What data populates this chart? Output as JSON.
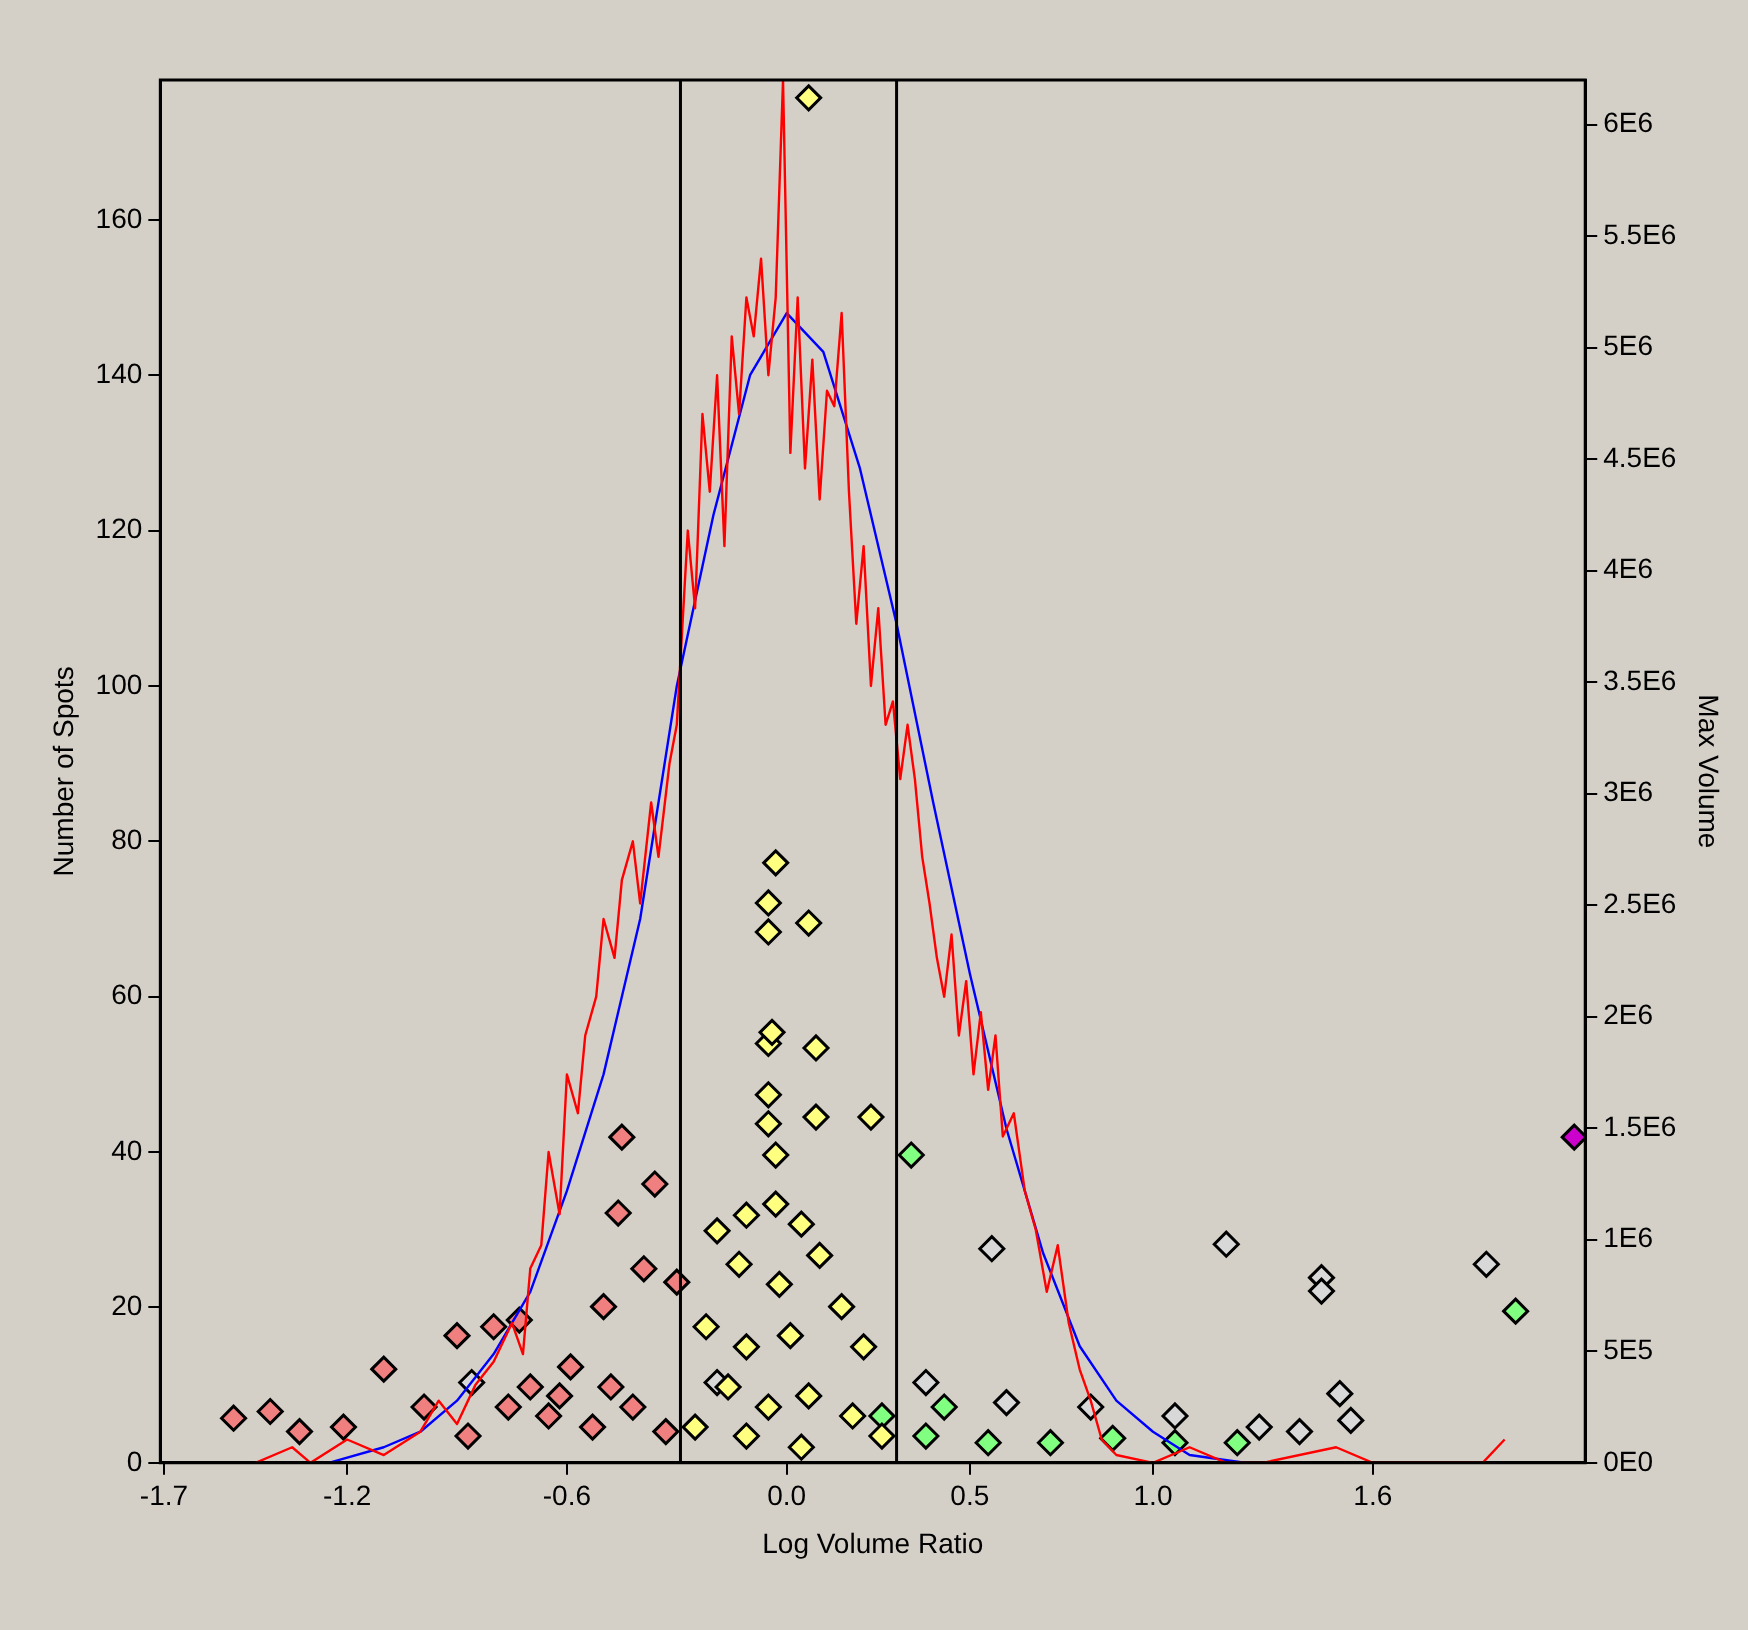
{
  "chart_data": {
    "type": "scatter",
    "xlabel": "Log Volume Ratio",
    "ylabel": "Number of Spots",
    "y2label": "Max Volume",
    "xlim": [
      -1.71,
      2.18
    ],
    "xticks": [
      {
        "value": -1.7,
        "label": "-1.7"
      },
      {
        "value": -1.2,
        "label": "-1.2"
      },
      {
        "value": -0.6,
        "label": "-0.6"
      },
      {
        "value": 0,
        "label": "0.0"
      },
      {
        "value": 0.5,
        "label": "0.5"
      },
      {
        "value": 1.0,
        "label": "1.0"
      },
      {
        "value": 1.6,
        "label": "1.6"
      }
    ],
    "ylim": [
      0,
      178
    ],
    "yticks": [
      0,
      20,
      40,
      60,
      80,
      100,
      120,
      140,
      160
    ],
    "y2lim": [
      0,
      6200000
    ],
    "y2ticks": [
      {
        "value": 0,
        "label": "0E0"
      },
      {
        "value": 500000,
        "label": "5E5"
      },
      {
        "value": 1000000,
        "label": "1E6"
      },
      {
        "value": 1500000,
        "label": "1.5E6"
      },
      {
        "value": 2000000,
        "label": "2E6"
      },
      {
        "value": 2500000,
        "label": "2.5E6"
      },
      {
        "value": 3000000,
        "label": "3E6"
      },
      {
        "value": 3500000,
        "label": "3.5E6"
      },
      {
        "value": 4000000,
        "label": "4E6"
      },
      {
        "value": 4500000,
        "label": "4.5E6"
      },
      {
        "value": 5000000,
        "label": "5E6"
      },
      {
        "value": 5500000,
        "label": "5.5E6"
      },
      {
        "value": 6000000,
        "label": "6E6"
      }
    ],
    "grid": false,
    "legend": false,
    "ref_lines": [
      {
        "axis": "x",
        "value": -0.29,
        "color": "#000000"
      },
      {
        "axis": "x",
        "value": 0.3,
        "color": "#000000"
      }
    ],
    "series": [
      {
        "type": "line",
        "color": "#ff0000",
        "marker": "none",
        "line_style": "solid",
        "x": [
          -1.45,
          -1.35,
          -1.3,
          -1.2,
          -1.1,
          -1.0,
          -0.95,
          -0.9,
          -0.85,
          -0.8,
          -0.75,
          -0.72,
          -0.7,
          -0.67,
          -0.65,
          -0.62,
          -0.6,
          -0.57,
          -0.55,
          -0.52,
          -0.5,
          -0.47,
          -0.45,
          -0.42,
          -0.4,
          -0.37,
          -0.35,
          -0.32,
          -0.3,
          -0.27,
          -0.25,
          -0.23,
          -0.21,
          -0.19,
          -0.17,
          -0.15,
          -0.13,
          -0.11,
          -0.09,
          -0.07,
          -0.05,
          -0.03,
          -0.01,
          0.01,
          0.03,
          0.05,
          0.07,
          0.09,
          0.11,
          0.13,
          0.15,
          0.17,
          0.19,
          0.21,
          0.23,
          0.25,
          0.27,
          0.29,
          0.31,
          0.33,
          0.35,
          0.37,
          0.39,
          0.41,
          0.43,
          0.45,
          0.47,
          0.49,
          0.51,
          0.53,
          0.55,
          0.57,
          0.59,
          0.62,
          0.65,
          0.68,
          0.71,
          0.74,
          0.77,
          0.8,
          0.83,
          0.86,
          0.9,
          1.0,
          1.1,
          1.2,
          1.3,
          1.5,
          1.6,
          1.9,
          1.96
        ],
        "values": [
          0,
          2,
          0,
          3,
          1,
          4,
          8,
          5,
          10,
          13,
          18,
          14,
          25,
          28,
          40,
          32,
          50,
          45,
          55,
          60,
          70,
          65,
          75,
          80,
          72,
          85,
          78,
          90,
          95,
          120,
          110,
          135,
          125,
          140,
          118,
          145,
          135,
          150,
          145,
          155,
          140,
          150,
          178,
          130,
          150,
          128,
          142,
          124,
          138,
          136,
          148,
          125,
          108,
          118,
          100,
          110,
          95,
          98,
          88,
          95,
          88,
          78,
          72,
          65,
          60,
          68,
          55,
          62,
          50,
          58,
          48,
          55,
          42,
          45,
          35,
          30,
          22,
          28,
          18,
          12,
          8,
          3,
          1,
          0,
          2,
          0,
          0,
          2,
          0,
          0,
          3
        ]
      },
      {
        "type": "line",
        "color": "#0000ff",
        "marker": "none",
        "line_style": "solid",
        "x": [
          -1.25,
          -1.1,
          -1.0,
          -0.9,
          -0.8,
          -0.7,
          -0.6,
          -0.5,
          -0.4,
          -0.3,
          -0.2,
          -0.1,
          0.0,
          0.1,
          0.2,
          0.3,
          0.4,
          0.5,
          0.6,
          0.7,
          0.8,
          0.9,
          1.0,
          1.1,
          1.25
        ],
        "values": [
          0,
          2,
          4,
          8,
          14,
          22,
          35,
          50,
          70,
          100,
          122,
          140,
          148,
          143,
          128,
          108,
          85,
          63,
          43,
          27,
          15,
          8,
          4,
          1,
          0
        ]
      },
      {
        "type": "scatter",
        "axis": "y2",
        "color": "#f08080",
        "marker": "diamond",
        "x": [
          -1.51,
          -1.41,
          -1.1,
          -0.9,
          -0.8,
          -0.73,
          -0.39,
          -0.45,
          -0.3,
          -0.36,
          -0.59,
          -0.48,
          -1.21,
          -0.99,
          -0.76,
          -0.65,
          -0.53,
          -0.42,
          -0.33,
          -1.33,
          -0.87,
          -0.7,
          -0.5,
          -0.62,
          -0.46
        ],
        "values": [
          200000,
          230000,
          420000,
          570000,
          610000,
          640000,
          870000,
          1460000,
          810000,
          1250000,
          430000,
          340000,
          160000,
          250000,
          250000,
          210000,
          160000,
          250000,
          140000,
          140000,
          120000,
          340000,
          700000,
          300000,
          1120000
        ]
      },
      {
        "type": "scatter",
        "axis": "y2",
        "color": "#ffff80",
        "marker": "diamond",
        "x": [
          0.06,
          -0.03,
          -0.05,
          -0.05,
          0.06,
          -0.05,
          -0.04,
          0.08,
          -0.05,
          -0.05,
          0.08,
          -0.03,
          0.23,
          -0.19,
          -0.11,
          -0.03,
          0.04,
          -0.13,
          -0.02,
          0.09,
          0.15,
          -0.22,
          -0.11,
          0.01,
          0.21,
          -0.16,
          -0.05,
          0.06,
          0.18,
          -0.25,
          -0.11,
          0.26,
          0.04
        ],
        "values": [
          6120000,
          2690000,
          2510000,
          2380000,
          2420000,
          1880000,
          1930000,
          1860000,
          1650000,
          1520000,
          1550000,
          1380000,
          1550000,
          1040000,
          1110000,
          1160000,
          1070000,
          890000,
          800000,
          930000,
          700000,
          610000,
          520000,
          570000,
          520000,
          340000,
          250000,
          300000,
          210000,
          160000,
          120000,
          120000,
          70000
        ]
      },
      {
        "type": "scatter",
        "axis": "y2",
        "color": "#d8d8d8",
        "marker": "diamond",
        "x": [
          0.56,
          1.2,
          1.46,
          1.46,
          1.91,
          1.51,
          1.54,
          0.38,
          0.6,
          0.83,
          1.06,
          1.29,
          1.4,
          -0.19,
          -0.86
        ],
        "values": [
          960000,
          980000,
          830000,
          770000,
          890000,
          310000,
          190000,
          360000,
          270000,
          250000,
          210000,
          160000,
          140000,
          360000,
          360000
        ]
      },
      {
        "type": "scatter",
        "axis": "y2",
        "color": "#80ff80",
        "marker": "diamond",
        "x": [
          0.34,
          1.99,
          0.38,
          0.55,
          0.72,
          0.89,
          1.06,
          1.23,
          0.43,
          0.26
        ],
        "values": [
          1380000,
          680000,
          120000,
          90000,
          90000,
          110000,
          90000,
          90000,
          250000,
          210000
        ]
      },
      {
        "type": "scatter",
        "axis": "y2",
        "color": "#cc00cc",
        "marker": "diamond",
        "x": [
          2.15
        ],
        "values": [
          1460000
        ]
      }
    ]
  }
}
